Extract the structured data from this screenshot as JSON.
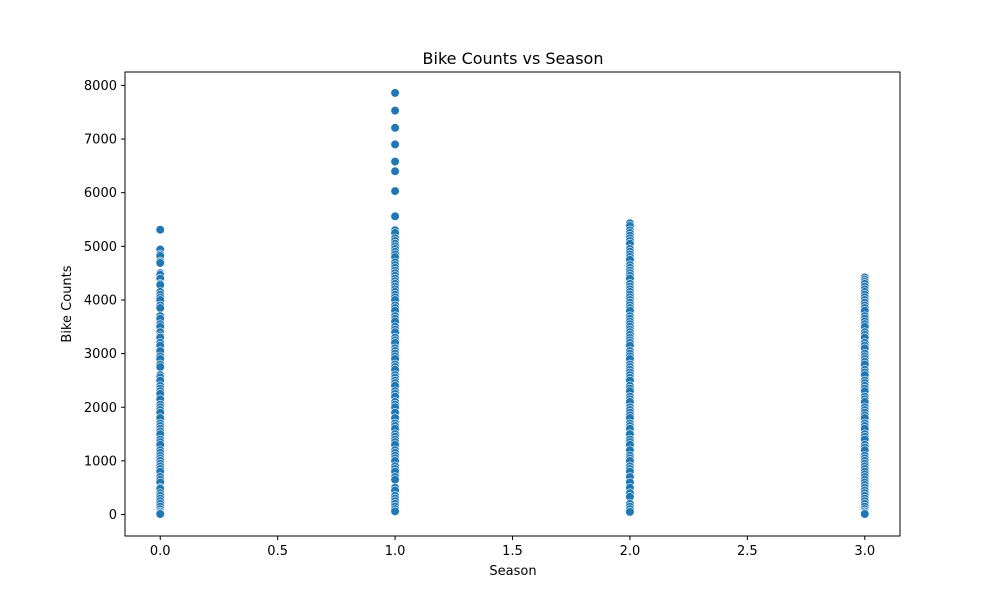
{
  "chart_data": {
    "type": "scatter",
    "title": "Bike Counts vs Season",
    "xlabel": "Season",
    "ylabel": "Bike Counts",
    "xlim": [
      -0.15,
      3.15
    ],
    "ylim": [
      -400,
      8250
    ],
    "xticks": [
      0.0,
      0.5,
      1.0,
      1.5,
      2.0,
      2.5,
      3.0
    ],
    "xtick_labels": [
      "0.0",
      "0.5",
      "1.0",
      "1.5",
      "2.0",
      "2.5",
      "3.0"
    ],
    "yticks": [
      0,
      1000,
      2000,
      3000,
      4000,
      5000,
      6000,
      7000,
      8000
    ],
    "ytick_labels": [
      "0",
      "1000",
      "2000",
      "3000",
      "4000",
      "5000",
      "6000",
      "7000",
      "8000"
    ],
    "grid": false,
    "marker_color": "#1f77b4",
    "marker_edge_color": "#ffffff",
    "series": [
      {
        "x": 0,
        "y": [
          5310,
          4940,
          4850,
          4820,
          4720,
          4690,
          4500,
          4470,
          4400,
          4300,
          4280,
          4150,
          4100,
          4050,
          4000,
          3900,
          3850,
          3700,
          3650,
          3550,
          3500,
          3400,
          3330,
          3300,
          3200,
          3150,
          3050,
          2950,
          2900,
          2800,
          2750,
          2600,
          2560,
          2500,
          2400,
          2350,
          2300,
          2250,
          2150,
          2050,
          2000,
          1950,
          1900,
          1800,
          1700,
          1650,
          1600,
          1550,
          1500,
          1400,
          1350,
          1300,
          1200,
          1150,
          1100,
          1050,
          1000,
          950,
          900,
          850,
          800,
          700,
          650,
          600,
          500,
          480,
          400,
          350,
          300,
          250,
          200,
          150,
          100,
          60,
          30,
          10
        ]
      },
      {
        "x": 1,
        "y": [
          7860,
          7530,
          7210,
          6900,
          6580,
          6400,
          6030,
          5560,
          5300,
          5250,
          5150,
          5100,
          5050,
          5000,
          4950,
          4900,
          4850,
          4800,
          4700,
          4650,
          4600,
          4550,
          4500,
          4450,
          4400,
          4350,
          4300,
          4250,
          4200,
          4150,
          4100,
          4050,
          4000,
          3900,
          3850,
          3800,
          3700,
          3650,
          3600,
          3500,
          3450,
          3400,
          3300,
          3250,
          3200,
          3100,
          3050,
          3000,
          2950,
          2900,
          2800,
          2750,
          2700,
          2600,
          2550,
          2500,
          2450,
          2400,
          2300,
          2250,
          2200,
          2100,
          2050,
          2000,
          1900,
          1800,
          1700,
          1650,
          1600,
          1500,
          1450,
          1400,
          1350,
          1300,
          1200,
          1150,
          1100,
          1050,
          1000,
          900,
          850,
          800,
          700,
          650,
          500,
          450,
          350,
          300,
          250,
          200,
          150,
          100,
          60
        ]
      },
      {
        "x": 2,
        "y": [
          5430,
          5380,
          5300,
          5250,
          5200,
          5150,
          5100,
          5050,
          4950,
          4900,
          4850,
          4800,
          4750,
          4650,
          4600,
          4550,
          4500,
          4450,
          4400,
          4300,
          4250,
          4200,
          4150,
          4100,
          4050,
          4000,
          3950,
          3900,
          3850,
          3800,
          3700,
          3650,
          3600,
          3550,
          3500,
          3450,
          3400,
          3350,
          3300,
          3250,
          3200,
          3150,
          3050,
          3000,
          2950,
          2900,
          2800,
          2750,
          2700,
          2650,
          2600,
          2550,
          2500,
          2400,
          2350,
          2300,
          2200,
          2150,
          2100,
          2000,
          1950,
          1900,
          1850,
          1800,
          1700,
          1650,
          1600,
          1500,
          1400,
          1350,
          1300,
          1200,
          1100,
          1050,
          1000,
          900,
          850,
          800,
          700,
          600,
          500,
          400,
          330,
          200,
          150,
          100,
          50
        ]
      },
      {
        "x": 3,
        "y": [
          4420,
          4380,
          4340,
          4300,
          4250,
          4200,
          4150,
          4100,
          4050,
          4000,
          3950,
          3900,
          3850,
          3800,
          3700,
          3650,
          3600,
          3550,
          3500,
          3400,
          3350,
          3300,
          3200,
          3150,
          3100,
          3000,
          2950,
          2900,
          2850,
          2800,
          2700,
          2650,
          2600,
          2500,
          2450,
          2400,
          2350,
          2300,
          2200,
          2150,
          2100,
          2000,
          1950,
          1900,
          1850,
          1800,
          1700,
          1650,
          1600,
          1500,
          1450,
          1400,
          1300,
          1250,
          1200,
          1100,
          1050,
          1000,
          950,
          900,
          850,
          800,
          750,
          700,
          650,
          600,
          550,
          500,
          450,
          400,
          350,
          300,
          250,
          200,
          150,
          100,
          60,
          30,
          10
        ]
      }
    ]
  }
}
